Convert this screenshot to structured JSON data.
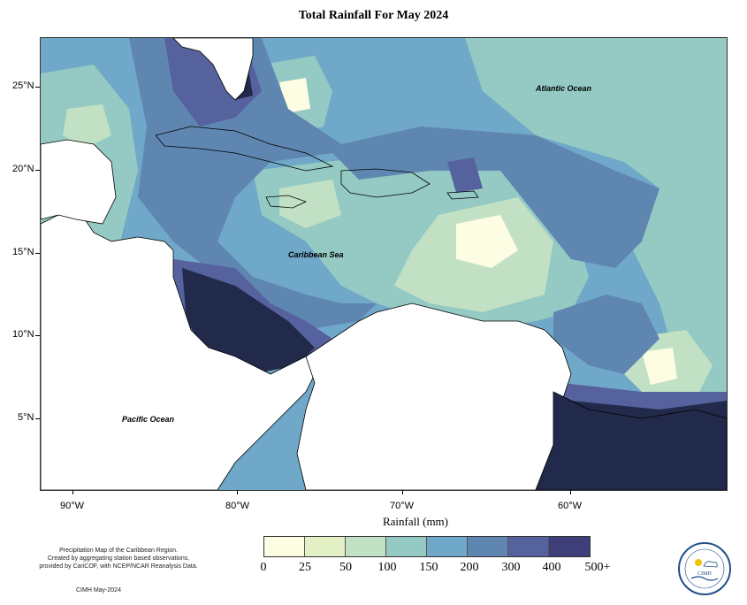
{
  "title": "Total Rainfall For May 2024",
  "map": {
    "labels": {
      "atlantic": "Atlantic Ocean",
      "caribbean": "Caribbean Sea",
      "pacific": "Pacific Ocean"
    },
    "lat_ticks": [
      "25°N",
      "20°N",
      "15°N",
      "10°N",
      "5°N"
    ],
    "lon_ticks": [
      "90°W",
      "80°W",
      "70°W",
      "60°W"
    ]
  },
  "legend": {
    "xlabel": "Rainfall (mm)",
    "ticks": [
      "0",
      "25",
      "50",
      "100",
      "150",
      "200",
      "300",
      "400",
      "500+"
    ],
    "colors": [
      "#fdfde3",
      "#e3f0c3",
      "#c2e1c4",
      "#94cac3",
      "#6fa8c8",
      "#5f86b1",
      "#56629e",
      "#3e3f7a",
      "#222a4c"
    ]
  },
  "credit": {
    "line1": "Precipitation Map of the Caribbean Region.",
    "line2": "Created by aggregating station based observations,",
    "line3": "provided by CariCOF, with NCEP/NCAR Reanalysis Data.",
    "date": "CIMH May-2024"
  },
  "logo": {
    "text": "CIMH"
  }
}
